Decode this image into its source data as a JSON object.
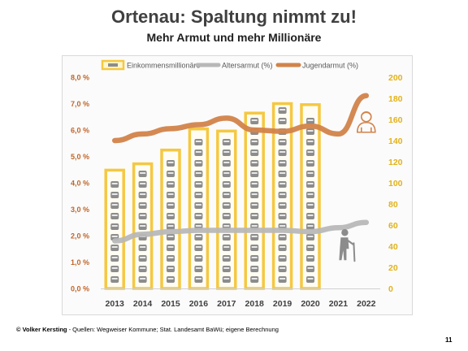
{
  "slide": {
    "title": "Ortenau: Spaltung nimmt zu!",
    "subtitle": "Mehr Armut und mehr Millionäre",
    "footer_author": "© Volker Kersting",
    "footer_sources": " - Quellen: Wegweiser Kommune; Stat. Landesamt BaWü; eigene Berechnung",
    "page_number": "11"
  },
  "chart_data": {
    "type": "bar",
    "categories": [
      "2013",
      "2014",
      "2015",
      "2016",
      "2017",
      "2018",
      "2019",
      "2020",
      "2021",
      "2022"
    ],
    "y_left": {
      "ylim": [
        0,
        8
      ],
      "ticks": [
        "0,0 %",
        "1,0 %",
        "2,0 %",
        "3,0 %",
        "4,0 %",
        "5,0 %",
        "6,0 %",
        "7,0 %",
        "8,0 %"
      ]
    },
    "y_right": {
      "ylim": [
        0,
        200
      ],
      "ticks": [
        "0",
        "20",
        "40",
        "60",
        "80",
        "100",
        "120",
        "140",
        "160",
        "180",
        "200"
      ]
    },
    "series": [
      {
        "name": "Einkommensmillionäre",
        "kind": "bar",
        "axis": "right",
        "color": "#f5c842",
        "values": [
          112,
          118,
          131,
          151,
          149,
          166,
          175,
          174,
          null,
          null
        ]
      },
      {
        "name": "Altersarmut (%)",
        "kind": "line",
        "axis": "left",
        "color": "#b8b8b8",
        "values": [
          1.8,
          2.05,
          2.15,
          2.2,
          2.2,
          2.2,
          2.2,
          2.15,
          2.3,
          2.5
        ]
      },
      {
        "name": "Jugendarmut (%)",
        "kind": "line",
        "axis": "left",
        "color": "#d2834a",
        "values": [
          5.6,
          5.85,
          6.05,
          6.2,
          6.45,
          6.0,
          5.95,
          6.15,
          5.85,
          7.3
        ]
      }
    ],
    "legend": "top",
    "grid": false,
    "icons": [
      "coin-stack-icon",
      "young-person-icon",
      "elderly-person-icon"
    ]
  }
}
